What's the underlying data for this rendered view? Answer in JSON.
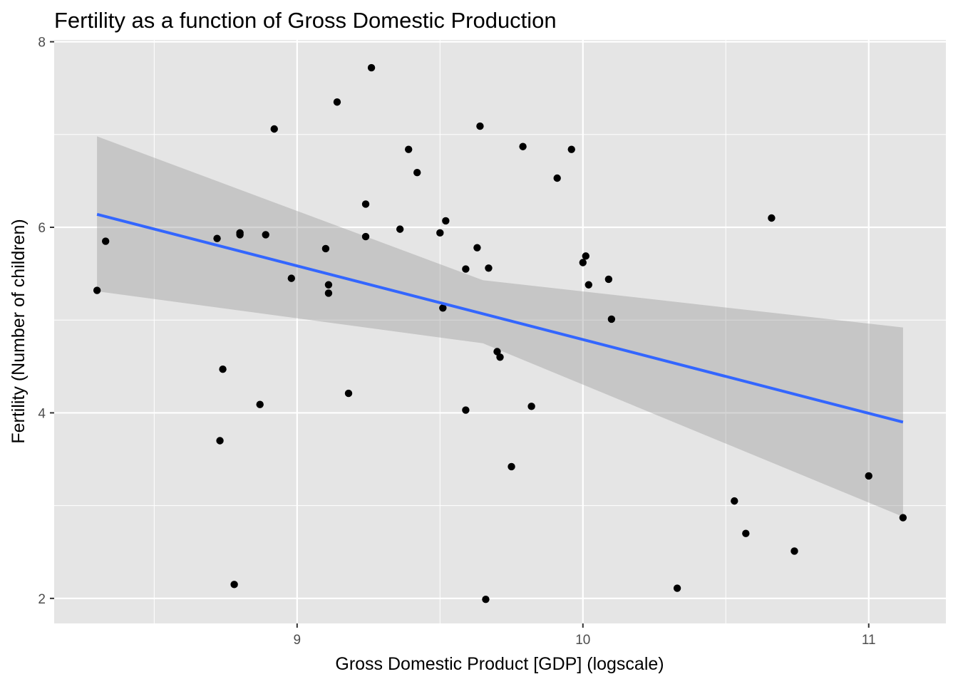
{
  "chart_data": {
    "type": "scatter",
    "title": "Fertility as a function of Gross Domestic Production",
    "xlabel": "Gross Domestic Product [GDP] (logscale)",
    "ylabel": "Fertility (Number of children)",
    "xlim": [
      8.15,
      11.27
    ],
    "ylim": [
      1.73,
      8.02
    ],
    "x_ticks": [
      9,
      10,
      11
    ],
    "y_ticks": [
      2,
      4,
      6,
      8
    ],
    "grid": true,
    "points": [
      {
        "x": 8.3,
        "y": 5.32
      },
      {
        "x": 8.33,
        "y": 5.85
      },
      {
        "x": 8.72,
        "y": 5.88
      },
      {
        "x": 8.73,
        "y": 3.7
      },
      {
        "x": 8.74,
        "y": 4.47
      },
      {
        "x": 8.78,
        "y": 2.15
      },
      {
        "x": 8.8,
        "y": 5.94
      },
      {
        "x": 8.8,
        "y": 5.92
      },
      {
        "x": 8.87,
        "y": 4.09
      },
      {
        "x": 8.89,
        "y": 5.92
      },
      {
        "x": 8.92,
        "y": 7.06
      },
      {
        "x": 8.98,
        "y": 5.45
      },
      {
        "x": 9.1,
        "y": 5.77
      },
      {
        "x": 9.11,
        "y": 5.38
      },
      {
        "x": 9.11,
        "y": 5.29
      },
      {
        "x": 9.14,
        "y": 7.35
      },
      {
        "x": 9.18,
        "y": 4.21
      },
      {
        "x": 9.24,
        "y": 6.25
      },
      {
        "x": 9.24,
        "y": 5.9
      },
      {
        "x": 9.26,
        "y": 7.72
      },
      {
        "x": 9.36,
        "y": 5.98
      },
      {
        "x": 9.39,
        "y": 6.84
      },
      {
        "x": 9.42,
        "y": 6.59
      },
      {
        "x": 9.5,
        "y": 5.94
      },
      {
        "x": 9.51,
        "y": 5.13
      },
      {
        "x": 9.52,
        "y": 6.07
      },
      {
        "x": 9.59,
        "y": 5.55
      },
      {
        "x": 9.59,
        "y": 4.03
      },
      {
        "x": 9.63,
        "y": 5.78
      },
      {
        "x": 9.64,
        "y": 7.09
      },
      {
        "x": 9.67,
        "y": 5.56
      },
      {
        "x": 9.66,
        "y": 1.99
      },
      {
        "x": 9.7,
        "y": 4.66
      },
      {
        "x": 9.71,
        "y": 4.6
      },
      {
        "x": 9.75,
        "y": 3.42
      },
      {
        "x": 9.79,
        "y": 6.87
      },
      {
        "x": 9.82,
        "y": 4.07
      },
      {
        "x": 9.91,
        "y": 6.53
      },
      {
        "x": 9.96,
        "y": 6.84
      },
      {
        "x": 10.0,
        "y": 5.62
      },
      {
        "x": 10.01,
        "y": 5.69
      },
      {
        "x": 10.02,
        "y": 5.38
      },
      {
        "x": 10.09,
        "y": 5.44
      },
      {
        "x": 10.1,
        "y": 5.01
      },
      {
        "x": 10.33,
        "y": 2.11
      },
      {
        "x": 10.53,
        "y": 3.05
      },
      {
        "x": 10.57,
        "y": 2.7
      },
      {
        "x": 10.66,
        "y": 6.1
      },
      {
        "x": 10.74,
        "y": 2.51
      },
      {
        "x": 11.0,
        "y": 3.32
      },
      {
        "x": 11.12,
        "y": 2.87
      }
    ],
    "trend": {
      "x0": 8.3,
      "y0": 6.14,
      "x1": 11.12,
      "y1": 3.9,
      "ci_upper": [
        [
          8.3,
          6.98
        ],
        [
          9.65,
          5.43
        ],
        [
          11.12,
          4.92
        ]
      ],
      "ci_lower": [
        [
          8.3,
          5.31
        ],
        [
          9.65,
          4.75
        ],
        [
          11.12,
          2.88
        ]
      ]
    },
    "colors": {
      "panel": "#e5e5e5",
      "grid": "#ffffff",
      "point": "#000000",
      "trend_line": "#3366ff",
      "ribbon": "#999999",
      "tick": "#333333"
    }
  }
}
